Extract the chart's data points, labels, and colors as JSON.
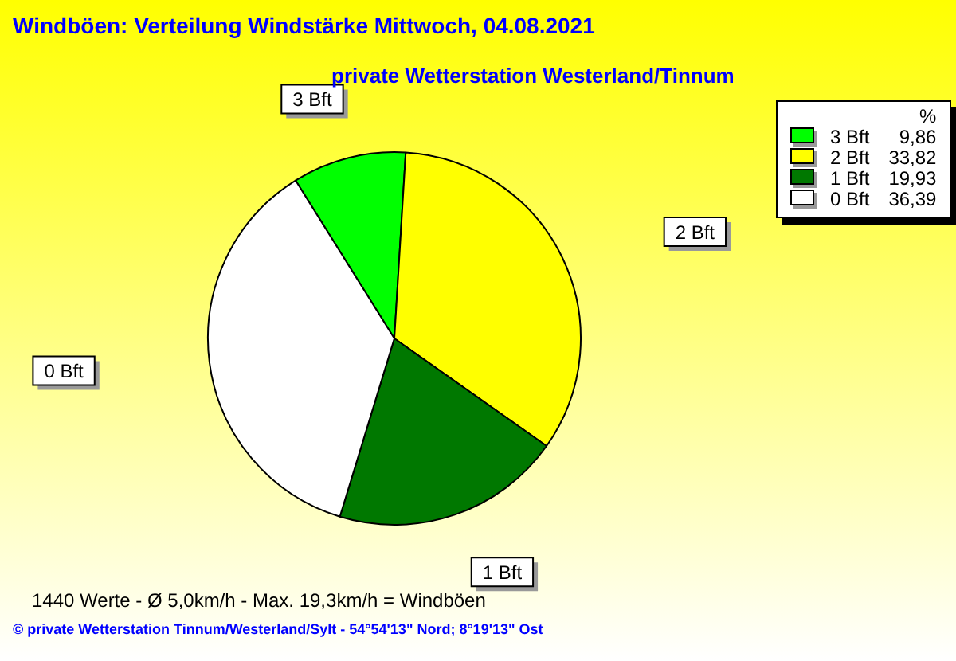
{
  "chart_data": {
    "type": "pie",
    "title": "Windböen: Verteilung Windstärke  Mittwoch, 04.08.2021",
    "subtitle": "private Wetterstation Westerland/Tinnum",
    "categories": [
      "3 Bft",
      "2 Bft",
      "1 Bft",
      "0 Bft"
    ],
    "values": [
      9.86,
      33.82,
      19.93,
      36.39
    ],
    "value_labels": [
      "9,86",
      "33,82",
      "19,93",
      "36,39"
    ],
    "colors": [
      "#00ff00",
      "#ffff00",
      "#007800",
      "#ffffff"
    ],
    "legend": "top right",
    "legend_title": "%",
    "annotations": [
      "1440 Werte   -   Ø 5,0km/h  -  Max. 19,3km/h = Windböen",
      "© private Wetterstation Tinnum/Westerland/Sylt  -  54°54'13\" Nord; 8°19'13\" Ost"
    ]
  }
}
